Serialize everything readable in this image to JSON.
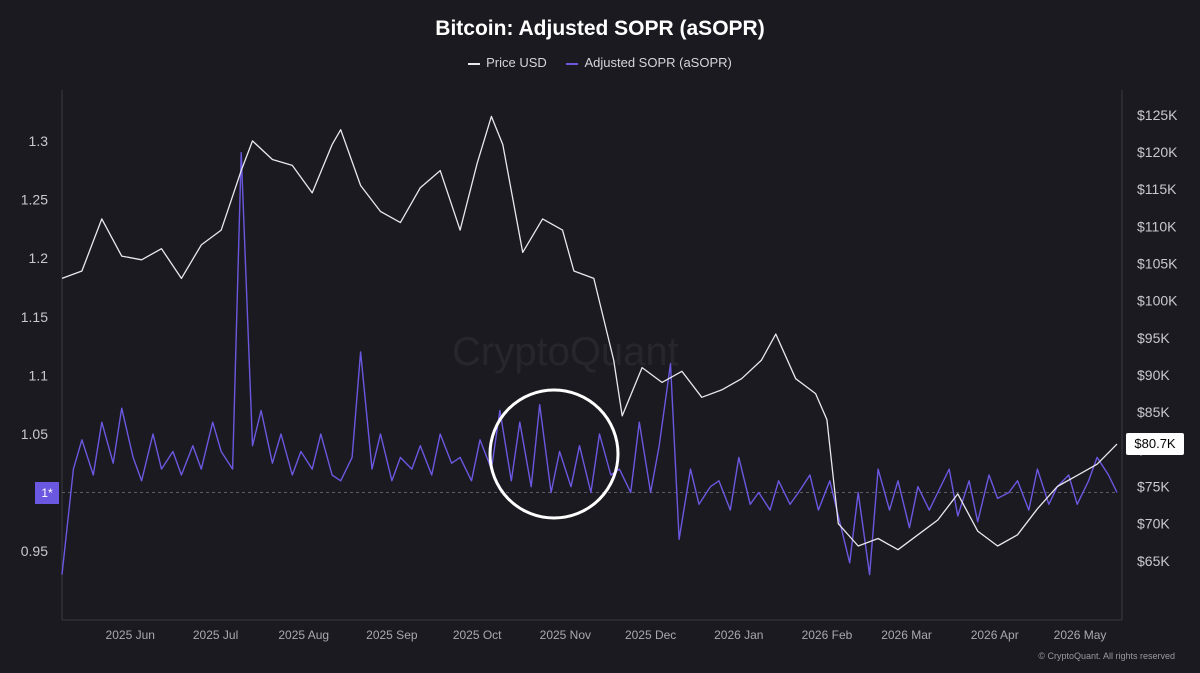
{
  "chart_data": {
    "type": "line",
    "title": "Bitcoin: Adjusted SOPR (aSOPR)",
    "legend": [
      {
        "name": "Price USD",
        "color": "#e8e8ee"
      },
      {
        "name": "Adjusted SOPR (aSOPR)",
        "color": "#6a58e0"
      }
    ],
    "legend_placement": "top-center",
    "grid": false,
    "x_labels": [
      "2025 Jun",
      "2025 Jul",
      "2025 Aug",
      "2025 Sep",
      "2025 Oct",
      "2025 Nov",
      "2025 Dec",
      "2026 Jan",
      "2026 Feb",
      "2026 Mar",
      "2026 Apr",
      "2026 May"
    ],
    "x_range": [
      "2025-05-08",
      "2026-05-14"
    ],
    "y_left": {
      "label": "",
      "range": [
        0.91,
        1.335
      ],
      "ticks": [
        "1.3",
        "1.25",
        "1.2",
        "1.15",
        "1.1",
        "1.05",
        "0.95"
      ]
    },
    "y_right": {
      "label": "",
      "range": [
        60000,
        127000
      ],
      "ticks": [
        "$125K",
        "$120K",
        "$115K",
        "$110K",
        "$105K",
        "$100K",
        "$95K",
        "$90K",
        "$85K",
        "$80K",
        "$75K",
        "$70K",
        "$65K"
      ]
    },
    "reference_line": {
      "value": 1,
      "label": "1*"
    },
    "last_price_label": "$80.7K",
    "series": [
      {
        "name": "Price USD",
        "axis": "right",
        "color": "#e8e8ee",
        "x": [
          "2025-05-08",
          "2025-05-15",
          "2025-05-22",
          "2025-05-29",
          "2025-06-05",
          "2025-06-12",
          "2025-06-19",
          "2025-06-26",
          "2025-07-03",
          "2025-07-10",
          "2025-07-14",
          "2025-07-21",
          "2025-07-28",
          "2025-08-04",
          "2025-08-11",
          "2025-08-14",
          "2025-08-21",
          "2025-08-28",
          "2025-09-04",
          "2025-09-11",
          "2025-09-18",
          "2025-09-25",
          "2025-10-01",
          "2025-10-06",
          "2025-10-10",
          "2025-10-17",
          "2025-10-24",
          "2025-10-31",
          "2025-11-04",
          "2025-11-11",
          "2025-11-18",
          "2025-11-21",
          "2025-11-28",
          "2025-12-05",
          "2025-12-12",
          "2025-12-19",
          "2025-12-26",
          "2026-01-02",
          "2026-01-09",
          "2026-01-14",
          "2026-01-21",
          "2026-01-28",
          "2026-02-01",
          "2026-02-05",
          "2026-02-12",
          "2026-02-19",
          "2026-02-26",
          "2026-03-05",
          "2026-03-12",
          "2026-03-19",
          "2026-03-26",
          "2026-04-02",
          "2026-04-09",
          "2026-04-16",
          "2026-04-23",
          "2026-04-30",
          "2026-05-07",
          "2026-05-14"
        ],
        "values": [
          103000,
          104000,
          111000,
          106000,
          105500,
          107000,
          103000,
          107500,
          109500,
          117500,
          121500,
          119000,
          118200,
          114500,
          121000,
          123000,
          115500,
          112000,
          110500,
          115200,
          117500,
          109500,
          118500,
          124800,
          121000,
          106500,
          111000,
          109500,
          104000,
          103000,
          92000,
          84500,
          91000,
          89000,
          90500,
          87000,
          88000,
          89500,
          92000,
          95500,
          89500,
          87500,
          84000,
          70000,
          67000,
          68000,
          66500,
          68500,
          70500,
          74000,
          69000,
          67000,
          68500,
          72000,
          75000,
          76500,
          78000,
          80700
        ]
      },
      {
        "name": "Adjusted SOPR (aSOPR)",
        "axis": "left",
        "color": "#6a58e0",
        "x": [
          "2025-05-08",
          "2025-05-12",
          "2025-05-15",
          "2025-05-19",
          "2025-05-22",
          "2025-05-26",
          "2025-05-29",
          "2025-06-02",
          "2025-06-05",
          "2025-06-09",
          "2025-06-12",
          "2025-06-16",
          "2025-06-19",
          "2025-06-23",
          "2025-06-26",
          "2025-06-30",
          "2025-07-03",
          "2025-07-07",
          "2025-07-10",
          "2025-07-14",
          "2025-07-17",
          "2025-07-21",
          "2025-07-24",
          "2025-07-28",
          "2025-07-31",
          "2025-08-04",
          "2025-08-07",
          "2025-08-11",
          "2025-08-14",
          "2025-08-18",
          "2025-08-21",
          "2025-08-25",
          "2025-08-28",
          "2025-09-01",
          "2025-09-04",
          "2025-09-08",
          "2025-09-11",
          "2025-09-15",
          "2025-09-18",
          "2025-09-22",
          "2025-09-25",
          "2025-09-29",
          "2025-10-02",
          "2025-10-06",
          "2025-10-09",
          "2025-10-13",
          "2025-10-16",
          "2025-10-20",
          "2025-10-23",
          "2025-10-27",
          "2025-10-30",
          "2025-11-03",
          "2025-11-06",
          "2025-11-10",
          "2025-11-13",
          "2025-11-17",
          "2025-11-20",
          "2025-11-24",
          "2025-11-27",
          "2025-12-01",
          "2025-12-04",
          "2025-12-08",
          "2025-12-11",
          "2025-12-15",
          "2025-12-18",
          "2025-12-22",
          "2025-12-25",
          "2025-12-29",
          "2026-01-01",
          "2026-01-05",
          "2026-01-08",
          "2026-01-12",
          "2026-01-15",
          "2026-01-19",
          "2026-01-22",
          "2026-01-26",
          "2026-01-29",
          "2026-02-02",
          "2026-02-05",
          "2026-02-09",
          "2026-02-12",
          "2026-02-16",
          "2026-02-19",
          "2026-02-23",
          "2026-02-26",
          "2026-03-02",
          "2026-03-05",
          "2026-03-09",
          "2026-03-12",
          "2026-03-16",
          "2026-03-19",
          "2026-03-23",
          "2026-03-26",
          "2026-03-30",
          "2026-04-02",
          "2026-04-06",
          "2026-04-09",
          "2026-04-13",
          "2026-04-16",
          "2026-04-20",
          "2026-04-23",
          "2026-04-27",
          "2026-04-30",
          "2026-05-04",
          "2026-05-07",
          "2026-05-11",
          "2026-05-14"
        ],
        "values": [
          0.93,
          1.02,
          1.045,
          1.015,
          1.06,
          1.025,
          1.072,
          1.03,
          1.01,
          1.05,
          1.02,
          1.035,
          1.015,
          1.04,
          1.02,
          1.06,
          1.035,
          1.02,
          1.29,
          1.04,
          1.07,
          1.025,
          1.05,
          1.015,
          1.035,
          1.02,
          1.05,
          1.015,
          1.01,
          1.03,
          1.12,
          1.02,
          1.05,
          1.01,
          1.03,
          1.02,
          1.04,
          1.015,
          1.05,
          1.025,
          1.03,
          1.01,
          1.045,
          1.02,
          1.07,
          1.01,
          1.06,
          1.005,
          1.075,
          1.0,
          1.035,
          1.005,
          1.04,
          1.0,
          1.05,
          1.015,
          1.02,
          1.0,
          1.06,
          1.0,
          1.04,
          1.11,
          0.96,
          1.02,
          0.99,
          1.005,
          1.01,
          0.985,
          1.03,
          0.99,
          1.0,
          0.985,
          1.01,
          0.99,
          1.0,
          1.015,
          0.985,
          1.01,
          0.98,
          0.94,
          1.0,
          0.93,
          1.02,
          0.985,
          1.01,
          0.97,
          1.005,
          0.985,
          1.0,
          1.02,
          0.98,
          1.01,
          0.975,
          1.015,
          0.995,
          1.0,
          1.01,
          0.985,
          1.02,
          0.99,
          1.005,
          1.015,
          0.99,
          1.01,
          1.03,
          1.015,
          1.0
        ]
      }
    ]
  },
  "watermark": "CryptoQuant",
  "copyright": "© CryptoQuant. All rights reserved"
}
